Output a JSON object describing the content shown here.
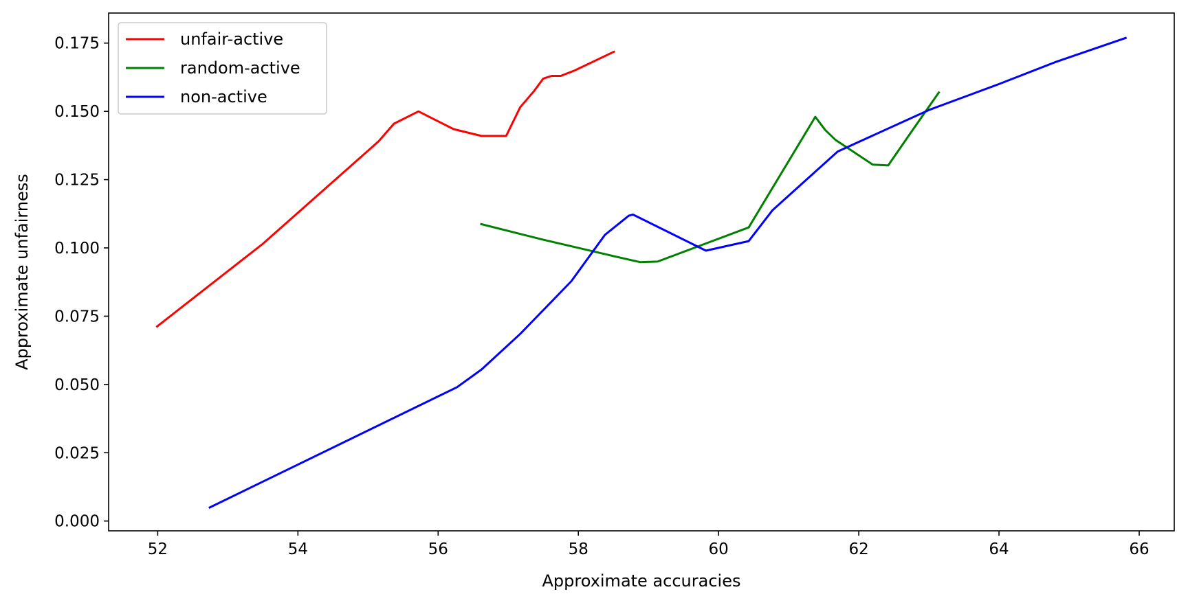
{
  "chart_data": {
    "type": "line",
    "xlabel": "Approximate accuracies",
    "ylabel": "Approximate unfairness",
    "xlim": [
      51.3,
      66.5
    ],
    "ylim": [
      -0.0036,
      0.186
    ],
    "xticks": [
      52,
      54,
      56,
      58,
      60,
      62,
      64,
      66
    ],
    "xtick_labels": [
      "52",
      "54",
      "56",
      "58",
      "60",
      "62",
      "64",
      "66"
    ],
    "yticks": [
      0.0,
      0.025,
      0.05,
      0.075,
      0.1,
      0.125,
      0.15,
      0.175
    ],
    "ytick_labels": [
      "0.000",
      "0.025",
      "0.050",
      "0.075",
      "0.100",
      "0.125",
      "0.150",
      "0.175"
    ],
    "grid": false,
    "legend_position": "top-left",
    "series": [
      {
        "name": "unfair-active",
        "color": "#ff0000",
        "x": [
          51.98,
          53.5,
          55.15,
          55.37,
          55.72,
          56.22,
          56.62,
          56.97,
          57.17,
          57.37,
          57.5,
          57.62,
          57.75,
          57.95,
          58.52
        ],
        "y": [
          0.071,
          0.1015,
          0.139,
          0.1455,
          0.15,
          0.1435,
          0.141,
          0.141,
          0.1515,
          0.1575,
          0.162,
          0.163,
          0.163,
          0.165,
          0.172
        ]
      },
      {
        "name": "random-active",
        "color": "#008000",
        "x": [
          56.6,
          57.5,
          58.5,
          58.88,
          59.13,
          60.43,
          61.38,
          61.52,
          61.67,
          62.2,
          62.42,
          62.75,
          63.15
        ],
        "y": [
          0.1088,
          0.103,
          0.097,
          0.0948,
          0.095,
          0.1075,
          0.148,
          0.1432,
          0.1395,
          0.1305,
          0.1302,
          0.1425,
          0.1572
        ]
      },
      {
        "name": "non-active",
        "color": "#0000ff",
        "x": [
          52.73,
          56.27,
          56.62,
          57.17,
          57.9,
          58.38,
          58.72,
          58.78,
          59.82,
          60.43,
          60.77,
          61.7,
          63.0,
          64.0,
          64.8,
          65.82
        ],
        "y": [
          0.0048,
          0.049,
          0.0555,
          0.0685,
          0.0878,
          0.1048,
          0.1118,
          0.1122,
          0.099,
          0.1025,
          0.1138,
          0.1353,
          0.1505,
          0.16,
          0.168,
          0.177
        ]
      }
    ]
  }
}
